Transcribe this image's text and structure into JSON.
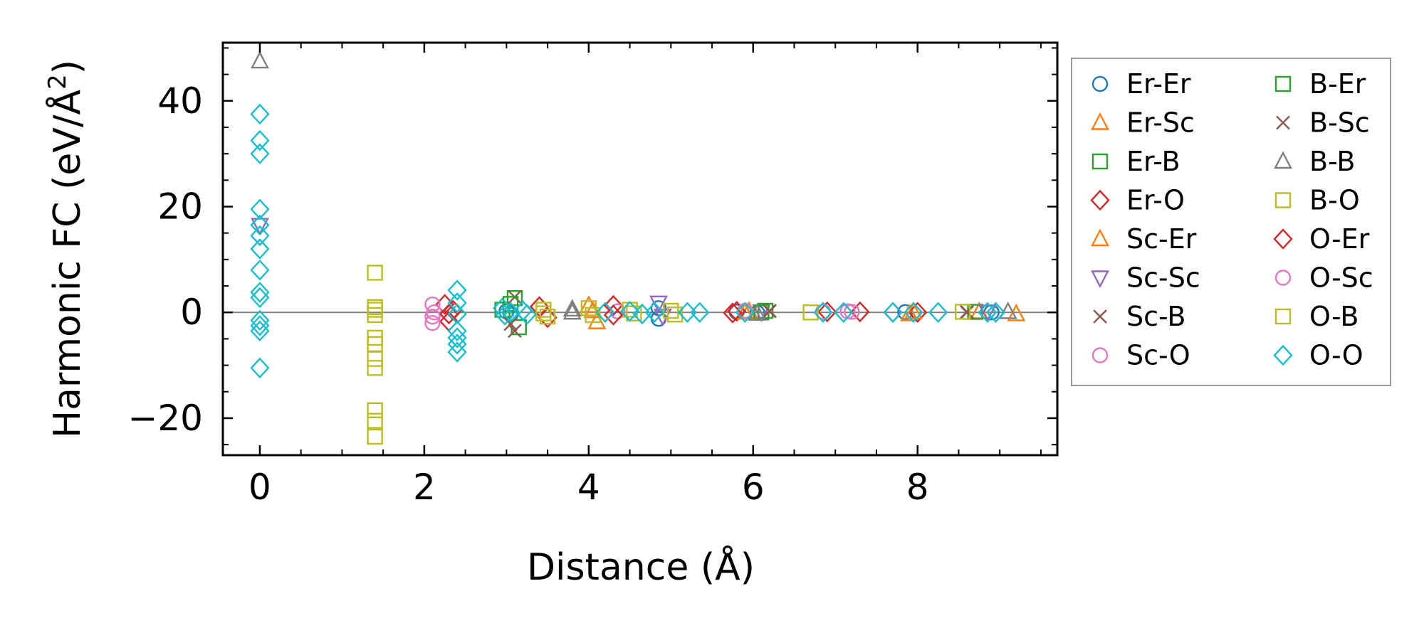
{
  "chart_data": {
    "type": "scatter",
    "xlabel": "Distance (Å)",
    "ylabel_main": "Harmonic FC (eV/Å",
    "ylabel_sup": "2",
    "ylabel_tail": ")",
    "xlim": [
      -0.45,
      9.7
    ],
    "ylim": [
      -27,
      51
    ],
    "xticks": [
      0,
      2,
      4,
      6,
      8
    ],
    "yticks": [
      -20,
      0,
      20,
      40
    ],
    "xtick_labels": [
      "0",
      "2",
      "4",
      "6",
      "8"
    ],
    "ytick_labels": [
      "−20",
      "0",
      "20",
      "40"
    ],
    "grid": false,
    "zero_line": true,
    "legend_position": "outside-right",
    "series": [
      {
        "name": "Er-Er",
        "marker": "circle",
        "color": "#1f77b4",
        "points": [
          [
            4.85,
            -1.2
          ],
          [
            4.85,
            0.8
          ],
          [
            3.0,
            0.2
          ],
          [
            3.05,
            -0.3
          ],
          [
            5.8,
            0.1
          ],
          [
            6.05,
            -0.1
          ],
          [
            7.85,
            0.05
          ],
          [
            8.9,
            0.0
          ]
        ]
      },
      {
        "name": "Er-Sc",
        "marker": "triangle-up",
        "color": "#ff7f0e",
        "points": [
          [
            4.1,
            -1.8
          ],
          [
            4.0,
            1.3
          ],
          [
            5.95,
            0.2
          ],
          [
            7.9,
            -0.3
          ],
          [
            9.2,
            -0.3
          ],
          [
            8.75,
            0.1
          ]
        ]
      },
      {
        "name": "Er-B",
        "marker": "square",
        "color": "#2ca02c",
        "points": [
          [
            3.1,
            2.7
          ],
          [
            3.15,
            -2.8
          ],
          [
            2.95,
            0.5
          ],
          [
            6.15,
            0.3
          ],
          [
            8.7,
            0.1
          ]
        ]
      },
      {
        "name": "Er-O",
        "marker": "diamond",
        "color": "#d62728",
        "points": [
          [
            2.25,
            1.5
          ],
          [
            2.3,
            -1.7
          ],
          [
            2.35,
            0.4
          ],
          [
            3.4,
            1.1
          ],
          [
            3.5,
            -1.0
          ],
          [
            4.3,
            1.3
          ],
          [
            5.8,
            0.2
          ],
          [
            6.9,
            0.1
          ],
          [
            7.3,
            0.1
          ],
          [
            7.7,
            0.0
          ],
          [
            8.0,
            0.0
          ]
        ]
      },
      {
        "name": "Sc-Er",
        "marker": "triangle-up",
        "color": "#ff7f0e",
        "points": [
          [
            4.05,
            0.3
          ],
          [
            5.9,
            0.0
          ],
          [
            7.95,
            0.1
          ]
        ]
      },
      {
        "name": "Sc-Sc",
        "marker": "triangle-down",
        "color": "#9467bd",
        "points": [
          [
            0.0,
            16.5
          ],
          [
            4.85,
            1.8
          ],
          [
            4.9,
            -0.7
          ],
          [
            6.1,
            0.1
          ],
          [
            8.85,
            0.1
          ]
        ]
      },
      {
        "name": "Sc-B",
        "marker": "x",
        "color": "#8c564b",
        "points": [
          [
            3.1,
            2.9
          ],
          [
            3.1,
            -3.5
          ],
          [
            6.2,
            0.3
          ],
          [
            8.6,
            0.0
          ]
        ]
      },
      {
        "name": "Sc-O",
        "marker": "circle",
        "color": "#e377c2",
        "points": [
          [
            2.1,
            1.5
          ],
          [
            2.1,
            -2.0
          ],
          [
            2.12,
            0.0
          ],
          [
            4.35,
            0.2
          ],
          [
            5.9,
            0.3
          ],
          [
            6.85,
            0.1
          ],
          [
            7.2,
            0.1
          ]
        ]
      },
      {
        "name": "B-Er",
        "marker": "square",
        "color": "#2ca02c",
        "points": [
          [
            3.05,
            1.6
          ],
          [
            6.1,
            0.0
          ]
        ]
      },
      {
        "name": "B-Sc",
        "marker": "x",
        "color": "#8c564b",
        "points": [
          [
            3.05,
            -2.2
          ],
          [
            6.2,
            0.2
          ],
          [
            8.6,
            0.1
          ]
        ]
      },
      {
        "name": "B-B",
        "marker": "triangle-up",
        "color": "#7f7f7f",
        "points": [
          [
            0.0,
            47.5
          ],
          [
            3.8,
            0.0
          ],
          [
            3.8,
            0.6
          ],
          [
            6.05,
            -0.2
          ],
          [
            9.1,
            0.1
          ]
        ]
      },
      {
        "name": "B-O",
        "marker": "square",
        "color": "#bcbd22",
        "points": [
          [
            1.4,
            7.5
          ],
          [
            1.4,
            1.0
          ],
          [
            1.4,
            -0.5
          ],
          [
            1.4,
            -4.8
          ],
          [
            1.4,
            -6.0
          ],
          [
            1.4,
            -8.8
          ],
          [
            1.4,
            -10.5
          ],
          [
            1.4,
            -18.5
          ],
          [
            1.4,
            -20.5
          ],
          [
            1.4,
            -23.5
          ],
          [
            3.45,
            0.5
          ],
          [
            3.5,
            -0.8
          ],
          [
            4.0,
            0.8
          ],
          [
            4.05,
            -0.5
          ],
          [
            4.5,
            0.5
          ],
          [
            5.05,
            -0.4
          ],
          [
            6.7,
            0.0
          ],
          [
            8.55,
            0.1
          ]
        ]
      },
      {
        "name": "O-Er",
        "marker": "diamond",
        "color": "#d62728",
        "points": [
          [
            2.3,
            -0.3
          ],
          [
            4.3,
            -0.5
          ],
          [
            5.75,
            -0.1
          ]
        ]
      },
      {
        "name": "O-Sc",
        "marker": "circle",
        "color": "#e377c2",
        "points": [
          [
            2.1,
            -0.8
          ],
          [
            7.15,
            0.2
          ]
        ]
      },
      {
        "name": "O-B",
        "marker": "square",
        "color": "#bcbd22",
        "points": [
          [
            1.4,
            0.5
          ],
          [
            3.45,
            -0.2
          ],
          [
            4.55,
            -0.2
          ],
          [
            5.0,
            0.3
          ]
        ]
      },
      {
        "name": "O-O",
        "marker": "diamond",
        "color": "#17becf",
        "points": [
          [
            0.0,
            37.5
          ],
          [
            0.0,
            32.5
          ],
          [
            0.0,
            30.0
          ],
          [
            0.0,
            19.5
          ],
          [
            0.0,
            16.5
          ],
          [
            0.0,
            14.5
          ],
          [
            0.0,
            12.0
          ],
          [
            0.0,
            8.0
          ],
          [
            0.0,
            3.8
          ],
          [
            0.0,
            2.8
          ],
          [
            0.0,
            -1.5
          ],
          [
            0.0,
            -2.5
          ],
          [
            0.0,
            -3.5
          ],
          [
            0.0,
            -10.5
          ],
          [
            2.4,
            4.2
          ],
          [
            2.4,
            1.8
          ],
          [
            2.4,
            -0.3
          ],
          [
            2.4,
            -3.5
          ],
          [
            2.4,
            -4.8
          ],
          [
            2.4,
            -6.0
          ],
          [
            2.4,
            -7.5
          ],
          [
            2.95,
            0.8
          ],
          [
            2.98,
            -0.5
          ],
          [
            3.05,
            0.0
          ],
          [
            3.2,
            0.3
          ],
          [
            3.25,
            -0.4
          ],
          [
            4.2,
            0.0
          ],
          [
            4.5,
            0.2
          ],
          [
            4.65,
            -0.3
          ],
          [
            4.8,
            0.0
          ],
          [
            5.2,
            0.0
          ],
          [
            5.35,
            0.0
          ],
          [
            5.9,
            0.0
          ],
          [
            6.85,
            0.0
          ],
          [
            7.1,
            0.0
          ],
          [
            7.7,
            0.0
          ],
          [
            7.95,
            0.0
          ],
          [
            8.25,
            0.0
          ],
          [
            8.85,
            0.0
          ],
          [
            8.95,
            0.0
          ]
        ]
      }
    ]
  }
}
